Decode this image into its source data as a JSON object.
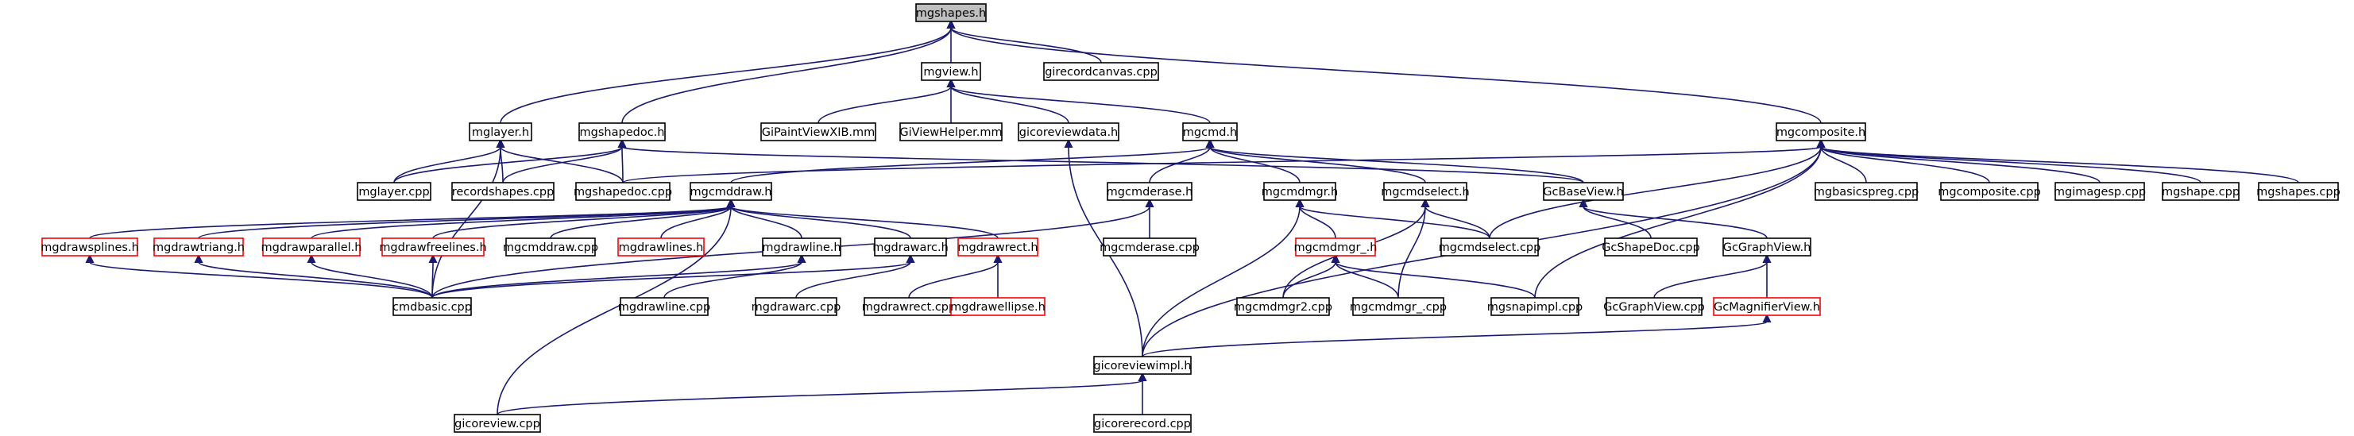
{
  "colors": {
    "edge": "#191970",
    "node_border": "#000000",
    "node_border_missing": "#ff0000",
    "root_fill": "#bfbfbf",
    "node_fill": "#ffffff"
  },
  "graph": {
    "root": "mgshapes_h",
    "nodes": [
      {
        "id": "mgshapes_h",
        "label": "mgshapes.h",
        "status": "root"
      },
      {
        "id": "mgview_h",
        "label": "mgview.h",
        "status": "normal"
      },
      {
        "id": "girecordcanvas_cpp",
        "label": "girecordcanvas.cpp",
        "status": "normal"
      },
      {
        "id": "mglayer_h",
        "label": "mglayer.h",
        "status": "normal"
      },
      {
        "id": "mgshapedoc_h",
        "label": "mgshapedoc.h",
        "status": "normal"
      },
      {
        "id": "GiPaintViewXIB_mm",
        "label": "GiPaintViewXIB.mm",
        "status": "normal"
      },
      {
        "id": "GiViewHelper_mm",
        "label": "GiViewHelper.mm",
        "status": "normal"
      },
      {
        "id": "gicoreviewdata_h",
        "label": "gicoreviewdata.h",
        "status": "normal"
      },
      {
        "id": "mgcmd_h",
        "label": "mgcmd.h",
        "status": "normal"
      },
      {
        "id": "mgcomposite_h",
        "label": "mgcomposite.h",
        "status": "normal"
      },
      {
        "id": "mglayer_cpp",
        "label": "mglayer.cpp",
        "status": "normal"
      },
      {
        "id": "recordshapes_cpp",
        "label": "recordshapes.cpp",
        "status": "normal"
      },
      {
        "id": "mgshapedoc_cpp",
        "label": "mgshapedoc.cpp",
        "status": "normal"
      },
      {
        "id": "mgcmddraw_h",
        "label": "mgcmddraw.h",
        "status": "normal"
      },
      {
        "id": "mgcmderase_h",
        "label": "mgcmderase.h",
        "status": "normal"
      },
      {
        "id": "mgcmdmgr_h",
        "label": "mgcmdmgr.h",
        "status": "normal"
      },
      {
        "id": "mgcmdselect_h",
        "label": "mgcmdselect.h",
        "status": "normal"
      },
      {
        "id": "GcBaseView_h",
        "label": "GcBaseView.h",
        "status": "normal"
      },
      {
        "id": "mgbasicspreg_cpp",
        "label": "mgbasicspreg.cpp",
        "status": "normal"
      },
      {
        "id": "mgcomposite_cpp",
        "label": "mgcomposite.cpp",
        "status": "normal"
      },
      {
        "id": "mgimagesp_cpp",
        "label": "mgimagesp.cpp",
        "status": "normal"
      },
      {
        "id": "mgshape_cpp",
        "label": "mgshape.cpp",
        "status": "normal"
      },
      {
        "id": "mgshapes_cpp",
        "label": "mgshapes.cpp",
        "status": "normal"
      },
      {
        "id": "mgdrawsplines_h",
        "label": "mgdrawsplines.h",
        "status": "missing"
      },
      {
        "id": "mgdrawtriang_h",
        "label": "mgdrawtriang.h",
        "status": "missing"
      },
      {
        "id": "mgdrawparallel_h",
        "label": "mgdrawparallel.h",
        "status": "missing"
      },
      {
        "id": "mgdrawfreelines_h",
        "label": "mgdrawfreelines.h",
        "status": "missing"
      },
      {
        "id": "mgcmddraw_cpp",
        "label": "mgcmddraw.cpp",
        "status": "normal"
      },
      {
        "id": "mgdrawlines_h",
        "label": "mgdrawlines.h",
        "status": "missing"
      },
      {
        "id": "mgdrawline_h",
        "label": "mgdrawline.h",
        "status": "normal"
      },
      {
        "id": "mgdrawarc_h",
        "label": "mgdrawarc.h",
        "status": "normal"
      },
      {
        "id": "mgdrawrect_h",
        "label": "mgdrawrect.h",
        "status": "missing"
      },
      {
        "id": "mgcmderase_cpp",
        "label": "mgcmderase.cpp",
        "status": "normal"
      },
      {
        "id": "mgcmdmgr__h",
        "label": "mgcmdmgr_.h",
        "status": "missing"
      },
      {
        "id": "mgcmdselect_cpp",
        "label": "mgcmdselect.cpp",
        "status": "normal"
      },
      {
        "id": "GcShapeDoc_cpp",
        "label": "GcShapeDoc.cpp",
        "status": "normal"
      },
      {
        "id": "GcGraphView_h",
        "label": "GcGraphView.h",
        "status": "normal"
      },
      {
        "id": "cmdbasic_cpp",
        "label": "cmdbasic.cpp",
        "status": "normal"
      },
      {
        "id": "mgdrawline_cpp",
        "label": "mgdrawline.cpp",
        "status": "normal"
      },
      {
        "id": "mgdrawarc_cpp",
        "label": "mgdrawarc.cpp",
        "status": "normal"
      },
      {
        "id": "mgdrawrect_cpp",
        "label": "mgdrawrect.cpp",
        "status": "normal"
      },
      {
        "id": "mgdrawellipse_h",
        "label": "mgdrawellipse.h",
        "status": "missing"
      },
      {
        "id": "mgcmdmgr2_cpp",
        "label": "mgcmdmgr2.cpp",
        "status": "normal"
      },
      {
        "id": "mgcmdmgr__cpp",
        "label": "mgcmdmgr_.cpp",
        "status": "normal"
      },
      {
        "id": "mgsnapimpl_cpp",
        "label": "mgsnapimpl.cpp",
        "status": "normal"
      },
      {
        "id": "GcGraphView_cpp",
        "label": "GcGraphView.cpp",
        "status": "normal"
      },
      {
        "id": "GcMagnifierView_h",
        "label": "GcMagnifierView.h",
        "status": "missing"
      },
      {
        "id": "gicoreviewimpl_h",
        "label": "gicoreviewimpl.h",
        "status": "normal"
      },
      {
        "id": "gicoreview_cpp",
        "label": "gicoreview.cpp",
        "status": "normal"
      },
      {
        "id": "gicorerecord_cpp",
        "label": "gicorerecord.cpp",
        "status": "normal"
      }
    ],
    "edges": [
      [
        "mgshapes_h",
        "mgview_h"
      ],
      [
        "mgshapes_h",
        "girecordcanvas_cpp"
      ],
      [
        "mgshapes_h",
        "mglayer_h"
      ],
      [
        "mgshapes_h",
        "mgshapedoc_h"
      ],
      [
        "mgshapes_h",
        "mgcomposite_h"
      ],
      [
        "mgview_h",
        "GiPaintViewXIB_mm"
      ],
      [
        "mgview_h",
        "GiViewHelper_mm"
      ],
      [
        "mgview_h",
        "gicoreviewdata_h"
      ],
      [
        "mgview_h",
        "mgcmd_h"
      ],
      [
        "mglayer_h",
        "mglayer_cpp"
      ],
      [
        "mglayer_h",
        "recordshapes_cpp"
      ],
      [
        "mglayer_h",
        "mgshapedoc_cpp"
      ],
      [
        "mglayer_h",
        "cmdbasic_cpp"
      ],
      [
        "mgshapedoc_h",
        "mglayer_cpp"
      ],
      [
        "mgshapedoc_h",
        "recordshapes_cpp"
      ],
      [
        "mgshapedoc_h",
        "mgshapedoc_cpp"
      ],
      [
        "mgshapedoc_h",
        "GcBaseView_h"
      ],
      [
        "gicoreviewdata_h",
        "gicoreviewimpl_h"
      ],
      [
        "mgcmd_h",
        "mgcmddraw_h"
      ],
      [
        "mgcmd_h",
        "mgcmderase_h"
      ],
      [
        "mgcmd_h",
        "mgcmdmgr_h"
      ],
      [
        "mgcmd_h",
        "mgcmdselect_h"
      ],
      [
        "mgcmd_h",
        "GcBaseView_h"
      ],
      [
        "mgcomposite_h",
        "mgshapedoc_cpp"
      ],
      [
        "mgcomposite_h",
        "mgcmdselect_cpp"
      ],
      [
        "mgcomposite_h",
        "mgsnapimpl_cpp"
      ],
      [
        "mgcomposite_h",
        "mgbasicspreg_cpp"
      ],
      [
        "mgcomposite_h",
        "mgcomposite_cpp"
      ],
      [
        "mgcomposite_h",
        "mgimagesp_cpp"
      ],
      [
        "mgcomposite_h",
        "mgshape_cpp"
      ],
      [
        "mgcomposite_h",
        "mgshapes_cpp"
      ],
      [
        "mgcomposite_h",
        "gicoreviewimpl_h"
      ],
      [
        "mgcmddraw_h",
        "mgdrawsplines_h"
      ],
      [
        "mgcmddraw_h",
        "mgdrawtriang_h"
      ],
      [
        "mgcmddraw_h",
        "mgdrawparallel_h"
      ],
      [
        "mgcmddraw_h",
        "mgdrawfreelines_h"
      ],
      [
        "mgcmddraw_h",
        "mgcmddraw_cpp"
      ],
      [
        "mgcmddraw_h",
        "mgdrawlines_h"
      ],
      [
        "mgcmddraw_h",
        "mgdrawline_h"
      ],
      [
        "mgcmddraw_h",
        "mgdrawarc_h"
      ],
      [
        "mgcmddraw_h",
        "mgdrawrect_h"
      ],
      [
        "mgcmddraw_h",
        "gicoreview_cpp"
      ],
      [
        "mgcmderase_h",
        "mgcmderase_cpp"
      ],
      [
        "mgcmderase_h",
        "cmdbasic_cpp"
      ],
      [
        "mgcmdmgr_h",
        "mgcmdmgr__h"
      ],
      [
        "mgcmdmgr_h",
        "mgcmdselect_cpp"
      ],
      [
        "mgcmdmgr_h",
        "gicoreviewimpl_h"
      ],
      [
        "mgcmdselect_h",
        "mgcmdselect_cpp"
      ],
      [
        "mgcmdselect_h",
        "mgcmdmgr2_cpp"
      ],
      [
        "mgcmdselect_h",
        "mgcmdmgr__cpp"
      ],
      [
        "GcBaseView_h",
        "GcShapeDoc_cpp"
      ],
      [
        "GcBaseView_h",
        "GcGraphView_h"
      ],
      [
        "mgdrawsplines_h",
        "cmdbasic_cpp"
      ],
      [
        "mgdrawtriang_h",
        "cmdbasic_cpp"
      ],
      [
        "mgdrawparallel_h",
        "cmdbasic_cpp"
      ],
      [
        "mgdrawfreelines_h",
        "cmdbasic_cpp"
      ],
      [
        "mgdrawline_h",
        "cmdbasic_cpp"
      ],
      [
        "mgdrawline_h",
        "mgdrawline_cpp"
      ],
      [
        "mgdrawarc_h",
        "cmdbasic_cpp"
      ],
      [
        "mgdrawarc_h",
        "mgdrawarc_cpp"
      ],
      [
        "mgdrawrect_h",
        "mgdrawrect_cpp"
      ],
      [
        "mgdrawrect_h",
        "mgdrawellipse_h"
      ],
      [
        "mgcmdmgr__h",
        "mgcmdmgr2_cpp"
      ],
      [
        "mgcmdmgr__h",
        "mgcmdmgr__cpp"
      ],
      [
        "mgcmdmgr__h",
        "mgsnapimpl_cpp"
      ],
      [
        "GcGraphView_h",
        "GcGraphView_cpp"
      ],
      [
        "GcGraphView_h",
        "GcMagnifierView_h"
      ],
      [
        "GcMagnifierView_h",
        "gicoreviewimpl_h"
      ],
      [
        "gicoreviewimpl_h",
        "gicoreview_cpp"
      ],
      [
        "gicoreviewimpl_h",
        "gicorerecord_cpp"
      ]
    ]
  }
}
